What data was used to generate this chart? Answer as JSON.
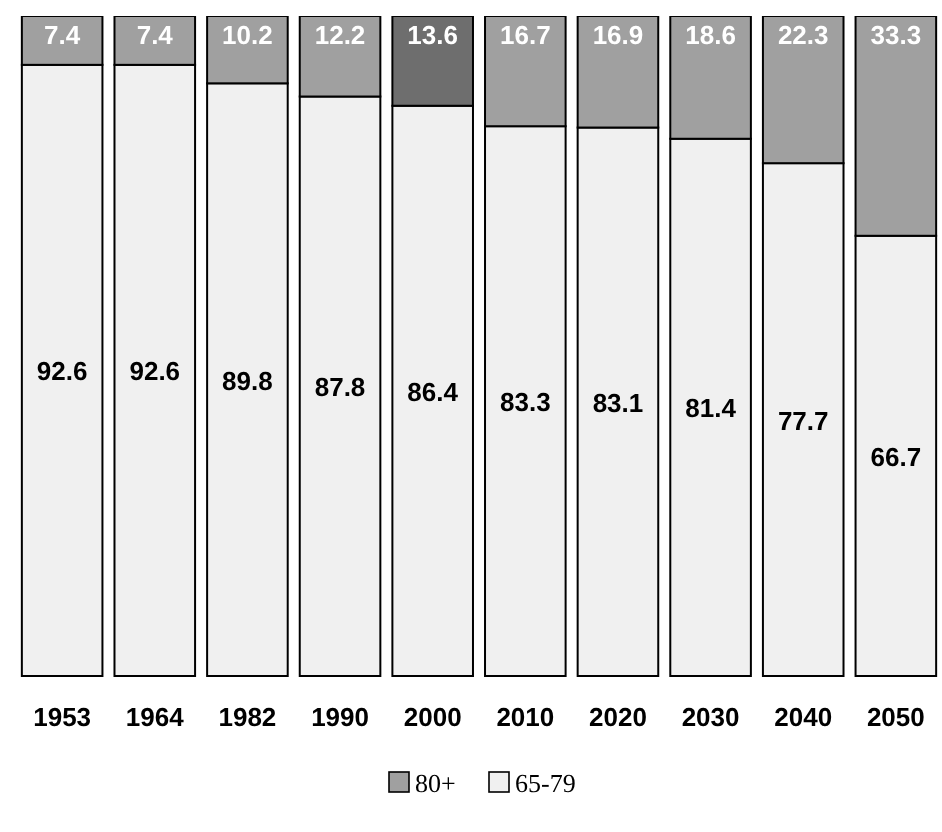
{
  "chart_data": {
    "type": "bar",
    "stacked": true,
    "data_labels": true,
    "legend": "bottom",
    "categories": [
      "1953",
      "1964",
      "1982",
      "1990",
      "2000",
      "2010",
      "2020",
      "2030",
      "2040",
      "2050"
    ],
    "series": [
      {
        "name": "65-79",
        "color": "#f0f0f0",
        "values": [
          92.6,
          92.6,
          89.8,
          87.8,
          86.4,
          83.3,
          83.1,
          81.4,
          77.7,
          66.7
        ]
      },
      {
        "name": "80+",
        "color": "#a0a0a0",
        "colors": [
          "#a0a0a0",
          "#a0a0a0",
          "#a0a0a0",
          "#a0a0a0",
          "#6e6e6e",
          "#a0a0a0",
          "#a0a0a0",
          "#a0a0a0",
          "#a0a0a0",
          "#a0a0a0"
        ],
        "values": [
          7.4,
          7.4,
          10.2,
          12.2,
          13.6,
          16.7,
          16.9,
          18.6,
          22.3,
          33.3
        ]
      }
    ]
  }
}
